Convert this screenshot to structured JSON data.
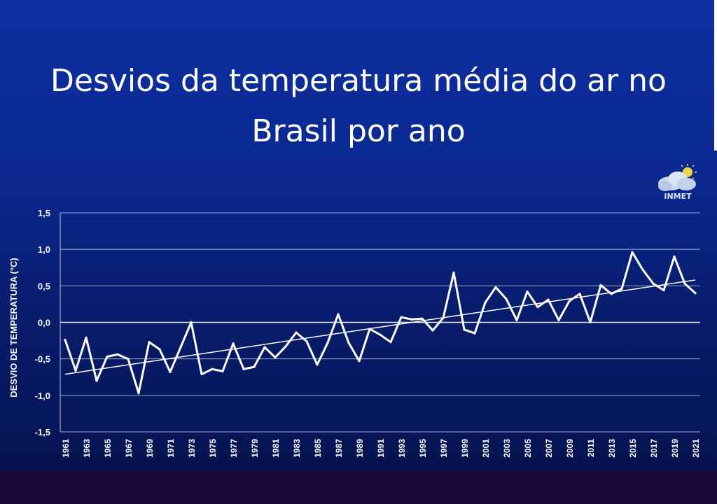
{
  "title_line1": "Desvios da temperatura média do ar no",
  "title_line2": "Brasil por ano",
  "logo_label": "INMET",
  "chart_data": {
    "type": "line",
    "ylabel": "DESVIO DE TEMPERATURA (°C)",
    "xlabel": "",
    "ylim": [
      -1.5,
      1.5
    ],
    "yticks": [
      -1.5,
      -1.0,
      -0.5,
      0.0,
      0.5,
      1.0,
      1.5
    ],
    "ytick_labels": [
      "-1,5",
      "-1,0",
      "-0,5",
      "0,0",
      "0,5",
      "1,0",
      "1,5"
    ],
    "xlim": [
      1961,
      2021
    ],
    "xtick_labels": [
      "1961",
      "1963",
      "1965",
      "1967",
      "1969",
      "1971",
      "1973",
      "1975",
      "1977",
      "1979",
      "1981",
      "1983",
      "1985",
      "1987",
      "1989",
      "1991",
      "1993",
      "1995",
      "1997",
      "1999",
      "2001",
      "2003",
      "2005",
      "2007",
      "2009",
      "2011",
      "2013",
      "2015",
      "2017",
      "2019",
      "2021"
    ],
    "grid": "horizontal",
    "colors": {
      "line": "#ffffff",
      "grid": "#b9c4df",
      "text": "#ffffff"
    },
    "series": [
      {
        "x": [
          1961,
          1962,
          1963,
          1964,
          1965,
          1966,
          1967,
          1968,
          1969,
          1970,
          1971,
          1972,
          1973,
          1974,
          1975,
          1976,
          1977,
          1978,
          1979,
          1980,
          1981,
          1982,
          1983,
          1984,
          1985,
          1986,
          1987,
          1988,
          1989,
          1990,
          1991,
          1992,
          1993,
          1994,
          1995,
          1996,
          1997,
          1998,
          1999,
          2000,
          2001,
          2002,
          2003,
          2004,
          2005,
          2006,
          2007,
          2008,
          2009,
          2010,
          2011,
          2012,
          2013,
          2014,
          2015,
          2016,
          2017,
          2018,
          2019,
          2020,
          2021
        ],
        "values": [
          -0.24,
          -0.66,
          -0.21,
          -0.8,
          -0.47,
          -0.44,
          -0.5,
          -0.97,
          -0.27,
          -0.37,
          -0.68,
          -0.34,
          0.0,
          -0.71,
          -0.64,
          -0.67,
          -0.29,
          -0.64,
          -0.61,
          -0.34,
          -0.48,
          -0.33,
          -0.14,
          -0.26,
          -0.58,
          -0.28,
          0.11,
          -0.28,
          -0.53,
          -0.09,
          -0.17,
          -0.27,
          0.07,
          0.04,
          0.05,
          -0.11,
          0.06,
          0.68,
          -0.1,
          -0.15,
          0.27,
          0.48,
          0.32,
          0.03,
          0.42,
          0.21,
          0.31,
          0.03,
          0.29,
          0.39,
          0.0,
          0.51,
          0.39,
          0.46,
          0.96,
          0.72,
          0.53,
          0.44,
          0.9,
          0.53,
          0.4
        ]
      }
    ],
    "trend": {
      "x": [
        1961,
        2021
      ],
      "values": [
        -0.71,
        0.58
      ]
    }
  }
}
